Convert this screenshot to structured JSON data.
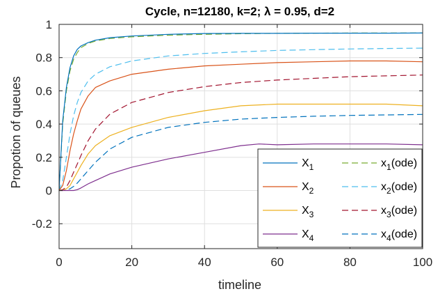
{
  "chart_data": {
    "type": "line",
    "title": "Cycle, n=12180, k=2; λ = 0.95, d=2",
    "xlabel": "timeline",
    "ylabel": "Propotion of queues",
    "xlim": [
      0,
      100
    ],
    "ylim": [
      -0.35,
      1
    ],
    "xticks": [
      "0",
      "20",
      "40",
      "60",
      "80",
      "100"
    ],
    "yticks": [
      "-0.2",
      "0",
      "0.2",
      "0.4",
      "0.6",
      "0.8",
      "1"
    ],
    "grid": true,
    "legend_position": "lower-right",
    "series": [
      {
        "legend_main": "X",
        "legend_sub": "1",
        "legend_suffix": "",
        "color": "#0072BD",
        "style": "solid",
        "x": [
          0,
          1,
          2,
          3,
          4,
          5,
          6,
          8,
          10,
          14,
          20,
          30,
          40,
          50,
          60,
          70,
          80,
          90,
          100
        ],
        "y": [
          0,
          0.42,
          0.62,
          0.74,
          0.81,
          0.85,
          0.87,
          0.89,
          0.905,
          0.92,
          0.93,
          0.94,
          0.945,
          0.946,
          0.946,
          0.947,
          0.947,
          0.947,
          0.948
        ]
      },
      {
        "legend_main": "X",
        "legend_sub": "2",
        "legend_suffix": "",
        "color": "#D95319",
        "style": "solid",
        "x": [
          0,
          1,
          2,
          3,
          4,
          5,
          6,
          8,
          10,
          14,
          20,
          30,
          40,
          50,
          60,
          70,
          80,
          90,
          100
        ],
        "y": [
          0,
          0.03,
          0.12,
          0.24,
          0.34,
          0.42,
          0.49,
          0.57,
          0.62,
          0.66,
          0.7,
          0.73,
          0.75,
          0.76,
          0.77,
          0.775,
          0.78,
          0.78,
          0.775
        ]
      },
      {
        "legend_main": "X",
        "legend_sub": "3",
        "legend_suffix": "",
        "color": "#EDB120",
        "style": "solid",
        "x": [
          0,
          1,
          2,
          3,
          4,
          5,
          6,
          8,
          10,
          14,
          20,
          30,
          40,
          50,
          60,
          70,
          80,
          90,
          100
        ],
        "y": [
          0,
          0.0,
          0.01,
          0.03,
          0.07,
          0.11,
          0.15,
          0.22,
          0.27,
          0.33,
          0.38,
          0.44,
          0.48,
          0.51,
          0.52,
          0.52,
          0.52,
          0.52,
          0.51
        ]
      },
      {
        "legend_main": "X",
        "legend_sub": "4",
        "legend_suffix": "",
        "color": "#7E2F8E",
        "style": "solid",
        "x": [
          0,
          2,
          4,
          5,
          6,
          8,
          10,
          14,
          20,
          30,
          40,
          50,
          55,
          60,
          70,
          80,
          90,
          100
        ],
        "y": [
          0,
          0,
          0.0,
          0.005,
          0.015,
          0.04,
          0.06,
          0.1,
          0.14,
          0.19,
          0.23,
          0.27,
          0.28,
          0.275,
          0.28,
          0.28,
          0.28,
          0.275
        ]
      },
      {
        "legend_main": "x",
        "legend_sub": "1",
        "legend_suffix": "(ode)",
        "color": "#77AC30",
        "style": "dashed",
        "x": [
          0,
          1,
          2,
          3,
          4,
          5,
          6,
          8,
          10,
          14,
          20,
          30,
          40,
          50,
          60,
          70,
          80,
          90,
          100
        ],
        "y": [
          0,
          0.4,
          0.6,
          0.72,
          0.79,
          0.83,
          0.86,
          0.885,
          0.9,
          0.915,
          0.925,
          0.935,
          0.94,
          0.944,
          0.946,
          0.947,
          0.948,
          0.948,
          0.948
        ]
      },
      {
        "legend_main": "x",
        "legend_sub": "2",
        "legend_suffix": "(ode)",
        "color": "#4DBEEE",
        "style": "dashed",
        "x": [
          0,
          1,
          2,
          3,
          4,
          5,
          6,
          8,
          10,
          14,
          20,
          30,
          40,
          50,
          60,
          70,
          80,
          90,
          100
        ],
        "y": [
          0,
          0.06,
          0.2,
          0.34,
          0.45,
          0.53,
          0.59,
          0.66,
          0.7,
          0.745,
          0.78,
          0.81,
          0.825,
          0.835,
          0.843,
          0.848,
          0.852,
          0.855,
          0.857
        ]
      },
      {
        "legend_main": "x",
        "legend_sub": "3",
        "legend_suffix": "(ode)",
        "color": "#A2142F",
        "style": "dashed",
        "x": [
          0,
          1,
          2,
          3,
          4,
          5,
          6,
          8,
          10,
          14,
          20,
          30,
          40,
          50,
          60,
          70,
          80,
          90,
          100
        ],
        "y": [
          0,
          0.005,
          0.02,
          0.06,
          0.11,
          0.16,
          0.21,
          0.3,
          0.37,
          0.46,
          0.53,
          0.59,
          0.625,
          0.65,
          0.665,
          0.675,
          0.685,
          0.69,
          0.695
        ]
      },
      {
        "legend_main": "x",
        "legend_sub": "4",
        "legend_suffix": "(ode)",
        "color": "#0072BD",
        "style": "dashed",
        "x": [
          0,
          1,
          2,
          3,
          4,
          5,
          6,
          8,
          10,
          14,
          20,
          30,
          40,
          50,
          60,
          70,
          80,
          90,
          100
        ],
        "y": [
          0,
          0.0,
          0.003,
          0.01,
          0.025,
          0.045,
          0.07,
          0.12,
          0.17,
          0.25,
          0.32,
          0.38,
          0.41,
          0.43,
          0.44,
          0.447,
          0.452,
          0.455,
          0.458
        ]
      }
    ]
  }
}
